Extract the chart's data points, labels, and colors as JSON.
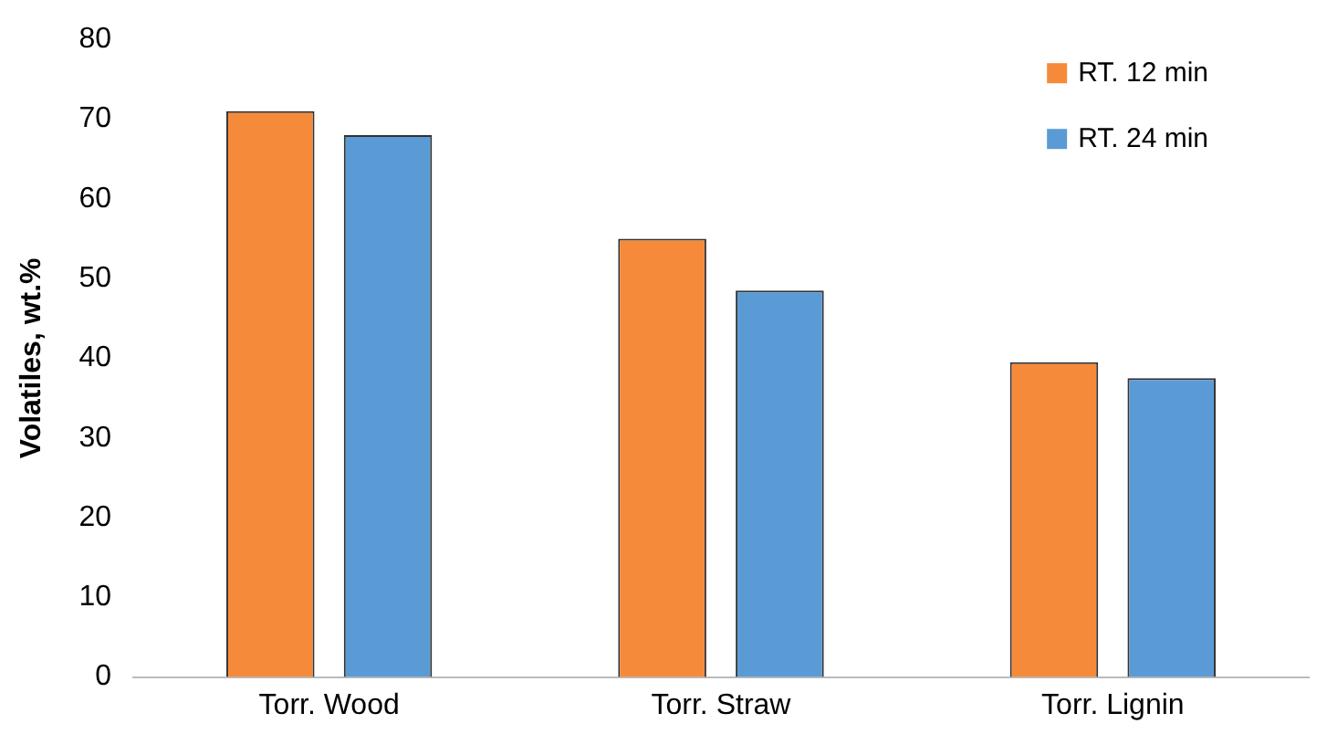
{
  "chart_data": {
    "type": "bar",
    "ylabel": "Volatiles, wt.%",
    "categories": [
      "Torr. Wood",
      "Torr. Straw",
      "Torr. Lignin"
    ],
    "series": [
      {
        "name": "RT. 12 min",
        "color": "#f58b3a",
        "values": [
          71,
          55,
          39.5
        ]
      },
      {
        "name": "RT. 24 min",
        "color": "#5b9bd5",
        "values": [
          68,
          48.5,
          37.5
        ]
      }
    ],
    "ylim": [
      0,
      80
    ],
    "yticks": [
      0,
      10,
      20,
      30,
      40,
      50,
      60,
      70,
      80
    ],
    "grid": false,
    "legend": "top right"
  }
}
